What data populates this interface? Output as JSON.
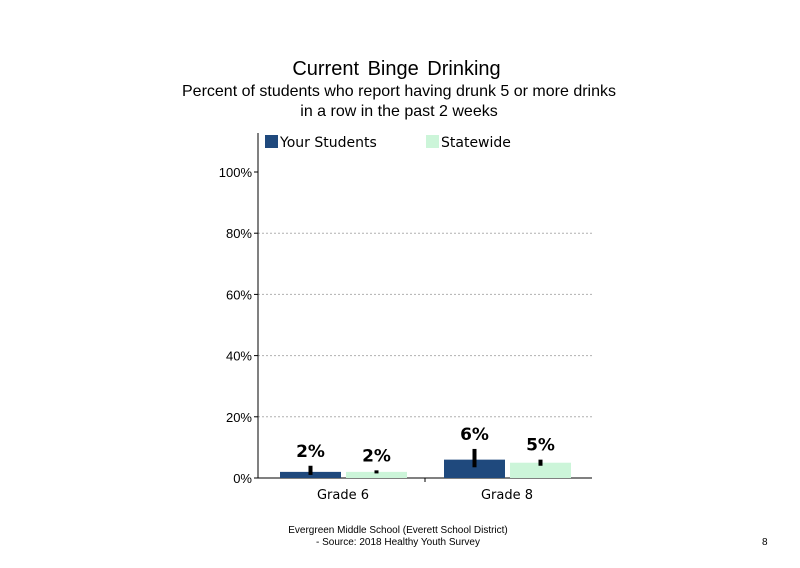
{
  "chart_data": {
    "type": "bar",
    "title": "Current  Binge Drinking",
    "subtitle": [
      "Percent of students who report having drunk 5 or more drinks",
      "in a row in the past 2 weeks"
    ],
    "categories": [
      "Grade 6",
      "Grade 8"
    ],
    "series": [
      {
        "name": "Your Students",
        "color": "#1f497d",
        "values": [
          2,
          6
        ],
        "labels": [
          "2%",
          "6%"
        ],
        "error": [
          [
            1,
            4
          ],
          [
            3.5,
            9.5
          ]
        ]
      },
      {
        "name": "Statewide",
        "color": "#ccf5d9",
        "values": [
          2,
          5
        ],
        "labels": [
          "2%",
          "5%"
        ],
        "error": [
          [
            1.5,
            2.5
          ],
          [
            4,
            6
          ]
        ]
      }
    ],
    "yticks": [
      "0%",
      "20%",
      "40%",
      "60%",
      "80%",
      "100%"
    ],
    "ylim": [
      0,
      100
    ],
    "grid": "dotted",
    "legend": "top"
  },
  "footer": [
    "Evergreen Middle  School (Everett School District)",
    "- Source: 2018 Healthy  Youth Survey"
  ],
  "page_number": "8"
}
